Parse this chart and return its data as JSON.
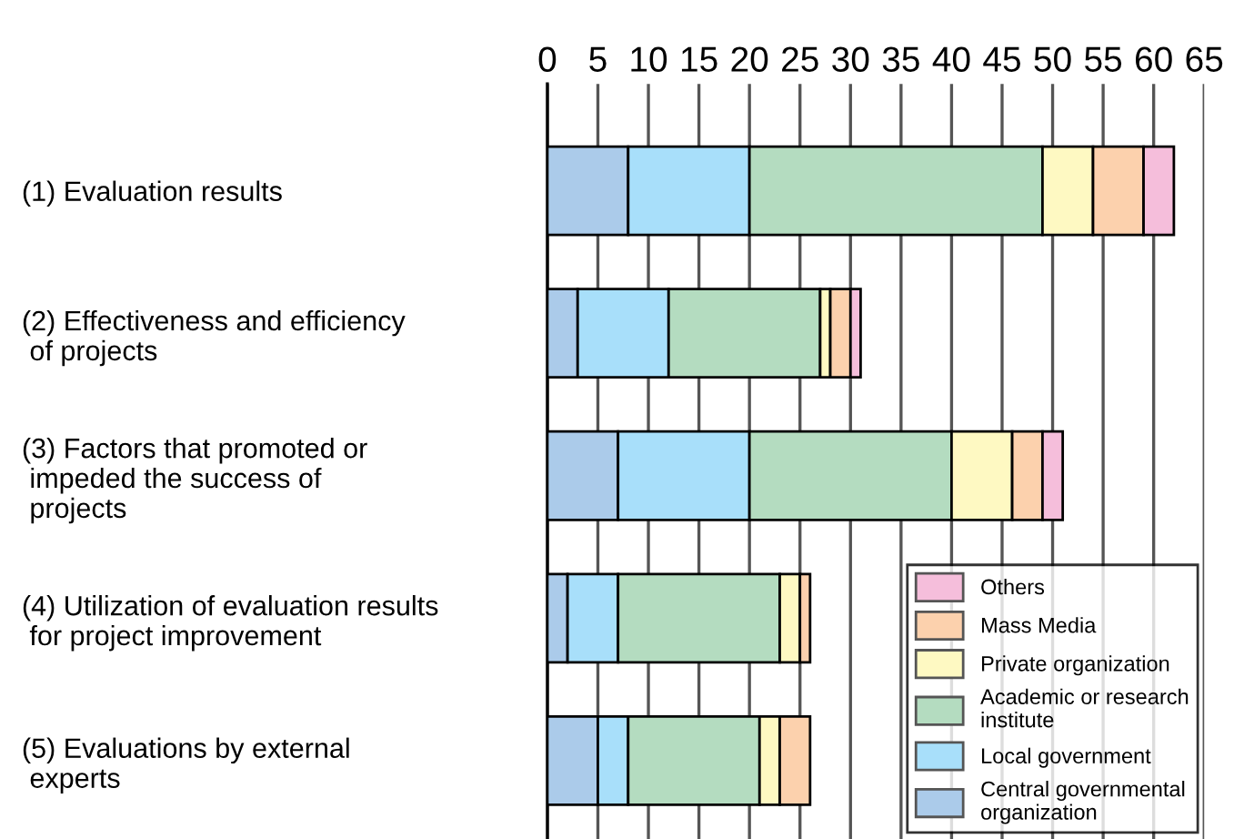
{
  "chart_data": {
    "type": "bar",
    "orientation": "horizontal",
    "stacked": true,
    "categories": [
      "(1) Evaluation results",
      "(2) Effectiveness and efficiency\n of projects",
      "(3) Factors that promoted or\n impeded the success of\n projects",
      "(4) Utilization of evaluation results\n for project improvement",
      "(5) Evaluations by external\n experts"
    ],
    "series": [
      {
        "name": "Central governmental\norganization",
        "color": "#abcbea",
        "values": [
          8,
          3,
          7,
          2,
          5
        ]
      },
      {
        "name": "Local government",
        "color": "#a8dffa",
        "values": [
          12,
          9,
          13,
          5,
          3
        ]
      },
      {
        "name": "Academic or research\ninstitute",
        "color": "#b4dcc0",
        "values": [
          29,
          15,
          20,
          16,
          13
        ]
      },
      {
        "name": "Private organization",
        "color": "#fef9c2",
        "values": [
          5,
          1,
          6,
          2,
          2
        ]
      },
      {
        "name": "Mass Media",
        "color": "#fcd1ad",
        "values": [
          5,
          2,
          3,
          1,
          3
        ]
      },
      {
        "name": "Others",
        "color": "#f5bedb",
        "values": [
          3,
          1,
          2,
          0,
          0
        ]
      }
    ],
    "xlim": [
      0,
      65
    ],
    "xticks": [
      0,
      5,
      10,
      15,
      20,
      25,
      30,
      35,
      40,
      45,
      50,
      55,
      60,
      65
    ],
    "grid": "x",
    "legend": "bottom right"
  }
}
